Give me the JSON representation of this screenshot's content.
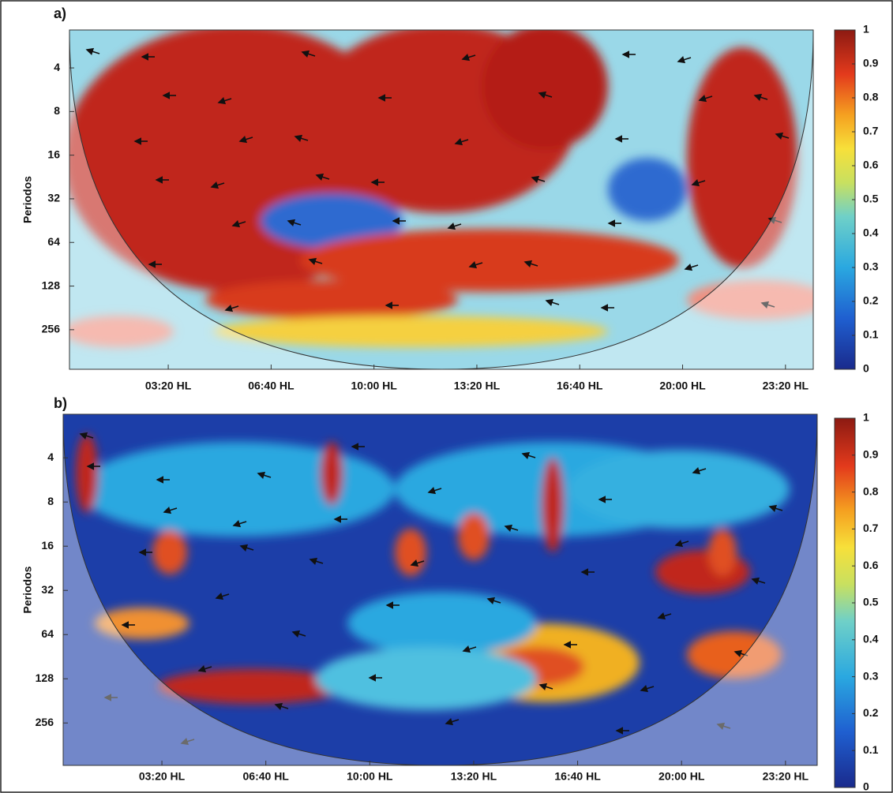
{
  "chart_data": [
    {
      "type": "heatmap",
      "panel_label": "a)",
      "ylabel": "Periodos",
      "yscale": "log",
      "y_reversed": true,
      "ylim": [
        2.19,
        480
      ],
      "yticks": [
        4,
        8,
        16,
        32,
        64,
        128,
        256
      ],
      "xlim": [
        8,
        1454
      ],
      "xticks": [
        {
          "value": 200,
          "label": "03:20 HL"
        },
        {
          "value": 400,
          "label": "06:40 HL"
        },
        {
          "value": 600,
          "label": "10:00 HL"
        },
        {
          "value": 800,
          "label": "13:20 HL"
        },
        {
          "value": 1000,
          "label": "16:40 HL"
        },
        {
          "value": 1200,
          "label": "20:00 HL"
        },
        {
          "value": 1400,
          "label": "23:20 HL"
        }
      ],
      "colorbar": {
        "colormap": "jet",
        "lim": [
          0,
          1
        ],
        "ticks": [
          0,
          0.1,
          0.2,
          0.3,
          0.4,
          0.5,
          0.6,
          0.7,
          0.8,
          0.9,
          1
        ]
      }
    },
    {
      "type": "heatmap",
      "panel_label": "b)",
      "ylabel": "Periodos",
      "yscale": "log",
      "y_reversed": true,
      "ylim": [
        2.02,
        498
      ],
      "yticks": [
        4,
        8,
        16,
        32,
        64,
        128,
        256
      ],
      "xlim": [
        10,
        1461
      ],
      "xticks": [
        {
          "value": 200,
          "label": "03:20 HL"
        },
        {
          "value": 400,
          "label": "06:40 HL"
        },
        {
          "value": 600,
          "label": "10:00 HL"
        },
        {
          "value": 800,
          "label": "13:20 HL"
        },
        {
          "value": 1000,
          "label": "16:40 HL"
        },
        {
          "value": 1200,
          "label": "20:00 HL"
        },
        {
          "value": 1400,
          "label": "23:20 HL"
        }
      ],
      "colorbar": {
        "colormap": "jet",
        "lim": [
          0,
          1
        ],
        "ticks": [
          0,
          0.1,
          0.2,
          0.3,
          0.4,
          0.5,
          0.6,
          0.7,
          0.8,
          0.9,
          1
        ]
      }
    }
  ]
}
